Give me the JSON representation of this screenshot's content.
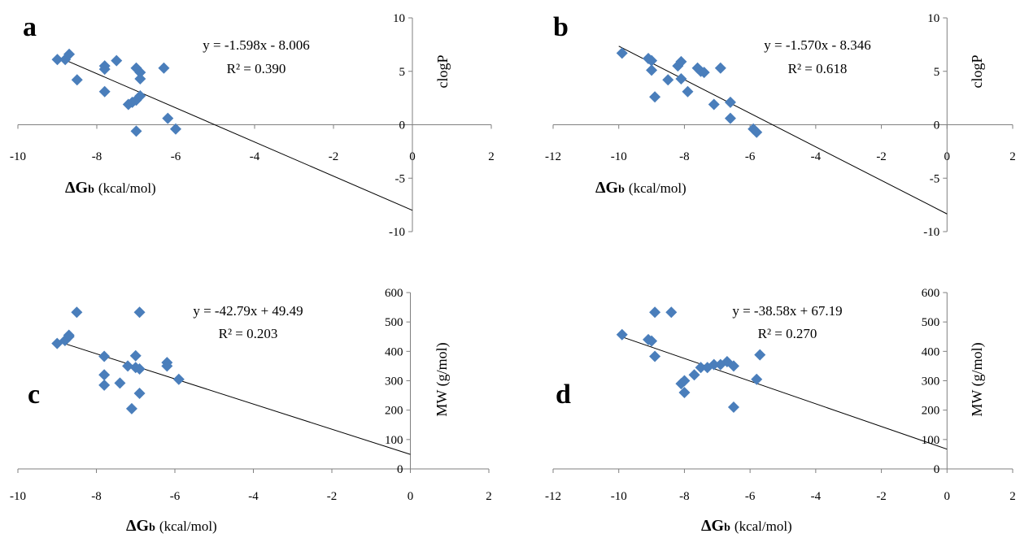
{
  "figure": {
    "style": {
      "marker_color": "#4a7ebb",
      "trendline_color": "#000000",
      "axis_color": "#7f7f7f"
    }
  },
  "chart_data": [
    {
      "panel": "a",
      "type": "scatter",
      "title": "",
      "xlabel": "ΔGb (kcal/mol)",
      "ylabel": "clogP",
      "xlim": [
        -10,
        2
      ],
      "ylim": [
        -10,
        10
      ],
      "xticks": [
        -10,
        -8,
        -6,
        -4,
        -2,
        0,
        2
      ],
      "yticks": [
        -10,
        -5,
        0,
        5,
        10
      ],
      "grid": false,
      "trendline": {
        "slope": -1.598,
        "intercept": -8.006,
        "equation": "y = -1.598x - 8.006",
        "r2_label": "R² = 0.390",
        "x_range": [
          -9,
          0
        ]
      },
      "points": [
        [
          -9.0,
          6.1
        ],
        [
          -8.8,
          6.1
        ],
        [
          -8.7,
          6.6
        ],
        [
          -8.5,
          4.2
        ],
        [
          -7.8,
          5.2
        ],
        [
          -7.8,
          5.5
        ],
        [
          -7.5,
          6.0
        ],
        [
          -7.0,
          5.3
        ],
        [
          -6.9,
          4.9
        ],
        [
          -6.9,
          4.3
        ],
        [
          -6.3,
          5.3
        ],
        [
          -7.8,
          3.1
        ],
        [
          -7.2,
          1.9
        ],
        [
          -7.1,
          2.1
        ],
        [
          -7.0,
          2.3
        ],
        [
          -6.9,
          2.7
        ],
        [
          -7.0,
          -0.6
        ],
        [
          -6.2,
          0.6
        ],
        [
          -6.0,
          -0.4
        ]
      ]
    },
    {
      "panel": "b",
      "type": "scatter",
      "title": "",
      "xlabel": "ΔGb (kcal/mol)",
      "ylabel": "clogP",
      "xlim": [
        -12,
        2
      ],
      "ylim": [
        -10,
        10
      ],
      "xticks": [
        -12,
        -10,
        -8,
        -6,
        -4,
        -2,
        0,
        2
      ],
      "yticks": [
        -10,
        -5,
        0,
        5,
        10
      ],
      "grid": false,
      "trendline": {
        "slope": -1.57,
        "intercept": -8.346,
        "equation": "y = -1.570x - 8.346",
        "r2_label": "R² = 0.618",
        "x_range": [
          -10,
          0
        ]
      },
      "points": [
        [
          -9.9,
          6.7
        ],
        [
          -9.1,
          6.2
        ],
        [
          -9.0,
          6.0
        ],
        [
          -9.0,
          5.1
        ],
        [
          -8.9,
          2.6
        ],
        [
          -8.5,
          4.2
        ],
        [
          -8.2,
          5.5
        ],
        [
          -8.1,
          5.9
        ],
        [
          -8.1,
          4.3
        ],
        [
          -7.9,
          3.1
        ],
        [
          -7.6,
          5.3
        ],
        [
          -7.5,
          5.0
        ],
        [
          -7.4,
          4.9
        ],
        [
          -7.1,
          1.9
        ],
        [
          -6.9,
          5.3
        ],
        [
          -6.6,
          2.1
        ],
        [
          -6.6,
          0.6
        ],
        [
          -5.9,
          -0.4
        ],
        [
          -5.8,
          -0.7
        ]
      ]
    },
    {
      "panel": "c",
      "type": "scatter",
      "title": "",
      "xlabel": "ΔGb (kcal/mol)",
      "ylabel": "MW (g/mol)",
      "xlim": [
        -10,
        2
      ],
      "ylim": [
        0,
        600
      ],
      "xticks": [
        -10,
        -8,
        -6,
        -4,
        -2,
        0,
        2
      ],
      "yticks": [
        0,
        100,
        200,
        300,
        400,
        500,
        600
      ],
      "grid": false,
      "trendline": {
        "slope": -42.79,
        "intercept": 49.49,
        "equation": "y = -42.79x + 49.49",
        "r2_label": "R² = 0.203",
        "x_range": [
          -9,
          0
        ]
      },
      "points": [
        [
          -9.0,
          427
        ],
        [
          -8.8,
          437
        ],
        [
          -8.7,
          450
        ],
        [
          -8.7,
          455
        ],
        [
          -8.5,
          533
        ],
        [
          -7.8,
          383
        ],
        [
          -7.8,
          320
        ],
        [
          -7.8,
          285
        ],
        [
          -7.4,
          292
        ],
        [
          -7.2,
          350
        ],
        [
          -7.1,
          205
        ],
        [
          -7.0,
          345
        ],
        [
          -7.0,
          385
        ],
        [
          -6.9,
          340
        ],
        [
          -6.9,
          533
        ],
        [
          -6.9,
          257
        ],
        [
          -6.2,
          362
        ],
        [
          -6.2,
          350
        ],
        [
          -5.9,
          305
        ]
      ]
    },
    {
      "panel": "d",
      "type": "scatter",
      "title": "",
      "xlabel": "ΔGb (kcal/mol)",
      "ylabel": "MW (g/mol)",
      "xlim": [
        -12,
        2
      ],
      "ylim": [
        0,
        600
      ],
      "xticks": [
        -12,
        -10,
        -8,
        -6,
        -4,
        -2,
        0,
        2
      ],
      "yticks": [
        0,
        100,
        200,
        300,
        400,
        500,
        600
      ],
      "grid": false,
      "trendline": {
        "slope": -38.58,
        "intercept": 67.19,
        "equation": "y = -38.58x + 67.19",
        "r2_label": "R² = 0.270",
        "x_range": [
          -10,
          0
        ]
      },
      "points": [
        [
          -9.9,
          457
        ],
        [
          -9.1,
          440
        ],
        [
          -9.0,
          435
        ],
        [
          -8.9,
          383
        ],
        [
          -8.9,
          533
        ],
        [
          -8.4,
          533
        ],
        [
          -8.1,
          290
        ],
        [
          -8.0,
          300
        ],
        [
          -8.0,
          260
        ],
        [
          -7.7,
          320
        ],
        [
          -7.5,
          345
        ],
        [
          -7.3,
          345
        ],
        [
          -7.1,
          355
        ],
        [
          -6.9,
          355
        ],
        [
          -6.7,
          365
        ],
        [
          -6.5,
          350
        ],
        [
          -6.5,
          210
        ],
        [
          -5.8,
          305
        ],
        [
          -5.7,
          388
        ]
      ]
    }
  ]
}
